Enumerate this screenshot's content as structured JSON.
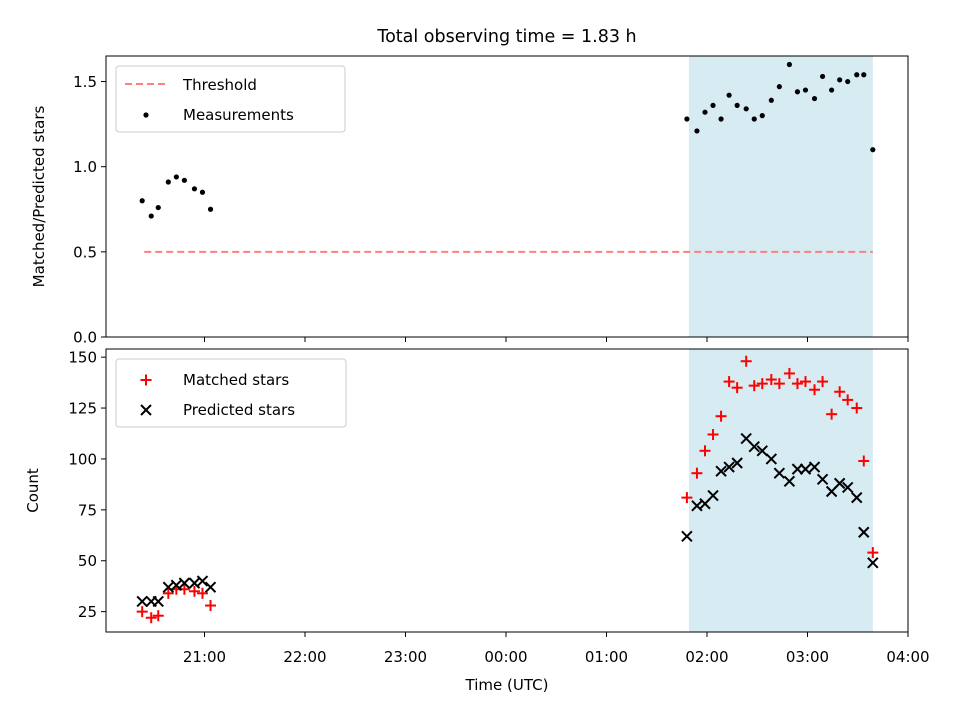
{
  "chart_data": [
    {
      "type": "scatter",
      "title": "Total observing time = 1.83 h",
      "ylabel": "Matched/Predicted stars",
      "xlabel": "",
      "x_unit": "hours relative to 00:00 UTC",
      "xlim": [
        -3.98,
        4.0
      ],
      "ylim": [
        0,
        1.65
      ],
      "yticks": [
        0.0,
        0.5,
        1.0,
        1.5
      ],
      "ytick_labels": [
        "0.0",
        "0.5",
        "1.0",
        "1.5"
      ],
      "highlight_span": [
        1.82,
        3.65
      ],
      "highlight_color": "#add8e6",
      "threshold": {
        "name": "Threshold",
        "y": 0.5,
        "x": [
          -3.6,
          3.65
        ],
        "color": "#ff7f7f",
        "style": "dashed"
      },
      "legend_position": "upper left",
      "series": [
        {
          "name": "Measurements",
          "marker": "dot",
          "color": "#000000",
          "x": [
            -3.62,
            -3.53,
            -3.46,
            -3.36,
            -3.28,
            -3.2,
            -3.1,
            -3.02,
            -2.94,
            1.8,
            1.9,
            1.98,
            2.06,
            2.14,
            2.22,
            2.3,
            2.39,
            2.47,
            2.55,
            2.64,
            2.72,
            2.82,
            2.9,
            2.98,
            3.07,
            3.15,
            3.24,
            3.32,
            3.4,
            3.49,
            3.56,
            3.65
          ],
          "y": [
            0.8,
            0.71,
            0.76,
            0.91,
            0.94,
            0.92,
            0.87,
            0.85,
            0.75,
            1.28,
            1.21,
            1.32,
            1.36,
            1.28,
            1.42,
            1.36,
            1.34,
            1.28,
            1.3,
            1.39,
            1.47,
            1.6,
            1.44,
            1.45,
            1.4,
            1.53,
            1.45,
            1.51,
            1.5,
            1.54,
            1.54,
            1.1
          ]
        }
      ]
    },
    {
      "type": "scatter",
      "title": "",
      "xlabel": "Time (UTC)",
      "ylabel": "Count",
      "x_unit": "hours relative to 00:00 UTC",
      "xlim": [
        -3.98,
        4.0
      ],
      "ylim": [
        15,
        154
      ],
      "yticks": [
        25,
        50,
        75,
        100,
        125,
        150
      ],
      "xticks": [
        -3,
        -2,
        -1,
        0,
        1,
        2,
        3,
        4
      ],
      "xtick_labels": [
        "21:00",
        "22:00",
        "23:00",
        "00:00",
        "01:00",
        "02:00",
        "03:00",
        "04:00"
      ],
      "highlight_span": [
        1.82,
        3.65
      ],
      "highlight_color": "#add8e6",
      "legend_position": "upper left",
      "series": [
        {
          "name": "Matched stars",
          "marker": "plus",
          "color": "#ff0000",
          "x": [
            -3.62,
            -3.53,
            -3.46,
            -3.36,
            -3.28,
            -3.2,
            -3.1,
            -3.02,
            -2.94,
            1.8,
            1.9,
            1.98,
            2.06,
            2.14,
            2.22,
            2.3,
            2.39,
            2.47,
            2.55,
            2.64,
            2.72,
            2.82,
            2.9,
            2.98,
            3.07,
            3.15,
            3.24,
            3.32,
            3.4,
            3.49,
            3.56,
            3.65
          ],
          "y": [
            25,
            22,
            23,
            34,
            36,
            36,
            35,
            34,
            28,
            81,
            93,
            104,
            112,
            121,
            138,
            135,
            148,
            136,
            137,
            139,
            137,
            142,
            137,
            138,
            134,
            138,
            122,
            133,
            129,
            125,
            99,
            54
          ]
        },
        {
          "name": "Predicted stars",
          "marker": "cross",
          "color": "#000000",
          "x": [
            -3.62,
            -3.53,
            -3.46,
            -3.36,
            -3.28,
            -3.2,
            -3.1,
            -3.02,
            -2.94,
            1.8,
            1.9,
            1.98,
            2.06,
            2.14,
            2.22,
            2.3,
            2.39,
            2.47,
            2.55,
            2.64,
            2.72,
            2.82,
            2.9,
            2.98,
            3.07,
            3.15,
            3.24,
            3.32,
            3.4,
            3.49,
            3.56,
            3.65
          ],
          "y": [
            30,
            30,
            30,
            37,
            38,
            39,
            39,
            40,
            37,
            62,
            77,
            78,
            82,
            94,
            96,
            98,
            110,
            106,
            104,
            100,
            93,
            89,
            95,
            95,
            96,
            90,
            84,
            88,
            86,
            81,
            64,
            49
          ]
        }
      ]
    }
  ]
}
